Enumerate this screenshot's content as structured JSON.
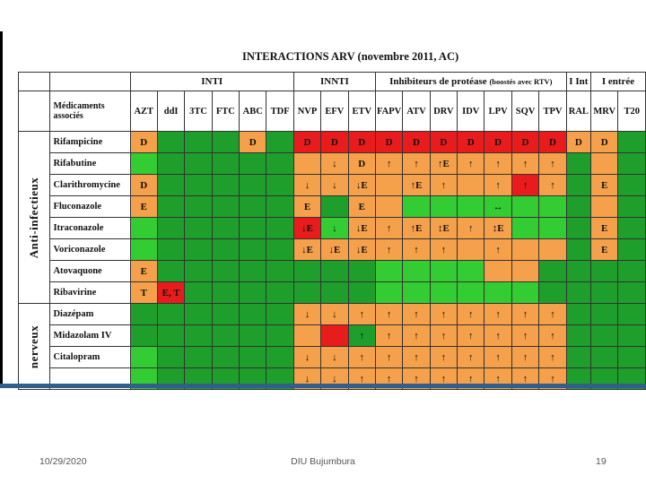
{
  "slide": {
    "title": "INTERACTIONS ARV (novembre 2011, AC)",
    "footer_date": "10/29/2020",
    "footer_center": "DIU Bujumbura",
    "page_number": "19"
  },
  "table": {
    "group_headers": {
      "inti": "INTI",
      "innti": "INNTI",
      "pi": "Inhibiteurs de protéase",
      "pi_note": "(boostés avec RTV)",
      "iint": "I Int",
      "entry": "I entrée"
    },
    "header_label": "Médicaments associés",
    "columns": [
      "AZT",
      "ddI",
      "3TC",
      "FTC",
      "ABC",
      "TDF",
      "NVP",
      "EFV",
      "ETV",
      "FAPV",
      "ATV",
      "DRV",
      "IDV",
      "LPV",
      "SQV",
      "TPV",
      "RAL",
      "MRV",
      "T20"
    ],
    "classes": [
      {
        "label": "Anti-infectieux",
        "start": 0,
        "span": 8
      },
      {
        "label": "nerveux",
        "start": 8,
        "span": 4
      }
    ],
    "colors": {
      "G": "#1e9e2a",
      "L": "#33cc33",
      "O": "#f5a04a",
      "R": "#e81c1c"
    },
    "rows": [
      {
        "name": "Rifampicine",
        "colors": "OGGGOGRRRRRRRRRROOG",
        "text": [
          "D",
          "",
          "",
          "",
          "D",
          "",
          "D",
          "D",
          "D",
          "D",
          "D",
          "D",
          "D",
          "D",
          "D",
          "D",
          "D",
          "D",
          ""
        ]
      },
      {
        "name": "Rifabutine",
        "colors": "LGGGGGOOOOOOOOOOGOG",
        "text": [
          "",
          "",
          "",
          "",
          "",
          "",
          "",
          "↓",
          "D",
          "↑",
          "↑",
          "↑E",
          "↑",
          "↑",
          "↑",
          "↑",
          "",
          "",
          ""
        ]
      },
      {
        "name": "Clarithromycine",
        "colors": "OGGGGGOOOOOOOOROGOG",
        "text": [
          "D",
          "",
          "",
          "",
          "",
          "",
          "↓",
          "↓",
          "↓E",
          "",
          "↑E",
          "↑",
          "",
          "↑",
          "↑",
          "↑",
          "",
          "E",
          ""
        ]
      },
      {
        "name": "Fluconazole",
        "colors": "OGGGGGOGOOLLLLLLGOG",
        "text": [
          "E",
          "",
          "",
          "",
          "",
          "",
          "E",
          "",
          "E",
          "",
          "",
          "",
          "",
          "↔",
          "",
          "",
          "",
          "",
          ""
        ]
      },
      {
        "name": "Itraconazole",
        "colors": "LGGGGGRLOOOOOOLLGOG",
        "text": [
          "",
          "",
          "",
          "",
          "",
          "",
          "↓E",
          "↓",
          "↓E",
          "↑",
          "↑E",
          "↕E",
          "↑",
          "↕E",
          "",
          "",
          "",
          "E",
          ""
        ]
      },
      {
        "name": "Voriconazole",
        "colors": "LGGGGGOOOOOOOOOOGOG",
        "text": [
          "",
          "",
          "",
          "",
          "",
          "",
          "↓E",
          "↓E",
          "↓E",
          "↑",
          "↑",
          "↑",
          "",
          "↑",
          "",
          "",
          "",
          "E",
          ""
        ]
      },
      {
        "name": "Atovaquone",
        "colors": "OGGGGGGGGLLLLOOGGGG",
        "text": [
          "E",
          "",
          "",
          "",
          "",
          "",
          "",
          "",
          "",
          "",
          "",
          "",
          "",
          "",
          "",
          "",
          "",
          "",
          ""
        ]
      },
      {
        "name": "Ribavirine",
        "colors": "ORGGGGGGGLLLLLLGGGG",
        "text": [
          "T",
          "E, T",
          "",
          "",
          "",
          "",
          "",
          "",
          "",
          "",
          "",
          "",
          "",
          "",
          "",
          "",
          "",
          "",
          ""
        ]
      },
      {
        "name": "Diazépam",
        "colors": "GGGGGGOOOOOOOOOOGGG",
        "text": [
          "",
          "",
          "",
          "",
          "",
          "",
          "↓",
          "↓",
          "↑",
          "↑",
          "↑",
          "↑",
          "↑",
          "↑",
          "↑",
          "↑",
          "",
          "",
          ""
        ]
      },
      {
        "name": "Midazolam IV",
        "colors": "GGGGGGORGOOOOOOOGGG",
        "text": [
          "",
          "",
          "",
          "",
          "",
          "",
          "",
          "",
          "↑",
          "↑",
          "↑",
          "↑",
          "↑",
          "↑",
          "↑",
          "↑",
          "",
          "",
          ""
        ]
      },
      {
        "name": "Citalopram",
        "colors": "LGGGGGOOOOOOOOOOGGG",
        "text": [
          "",
          "",
          "",
          "",
          "",
          "",
          "↓",
          "↓",
          "↑",
          "↑",
          "↑",
          "↑",
          "↑",
          "↑",
          "↑",
          "↑",
          "",
          "",
          ""
        ]
      },
      {
        "name": "",
        "colors": "LGGGGGOOOOOOOOOOGGG",
        "text": [
          "",
          "",
          "",
          "",
          "",
          "",
          "↓",
          "↓",
          "↑",
          "↑",
          "↑",
          "↑",
          "↑",
          "↑",
          "↑",
          "↑",
          "",
          "",
          ""
        ]
      }
    ]
  }
}
